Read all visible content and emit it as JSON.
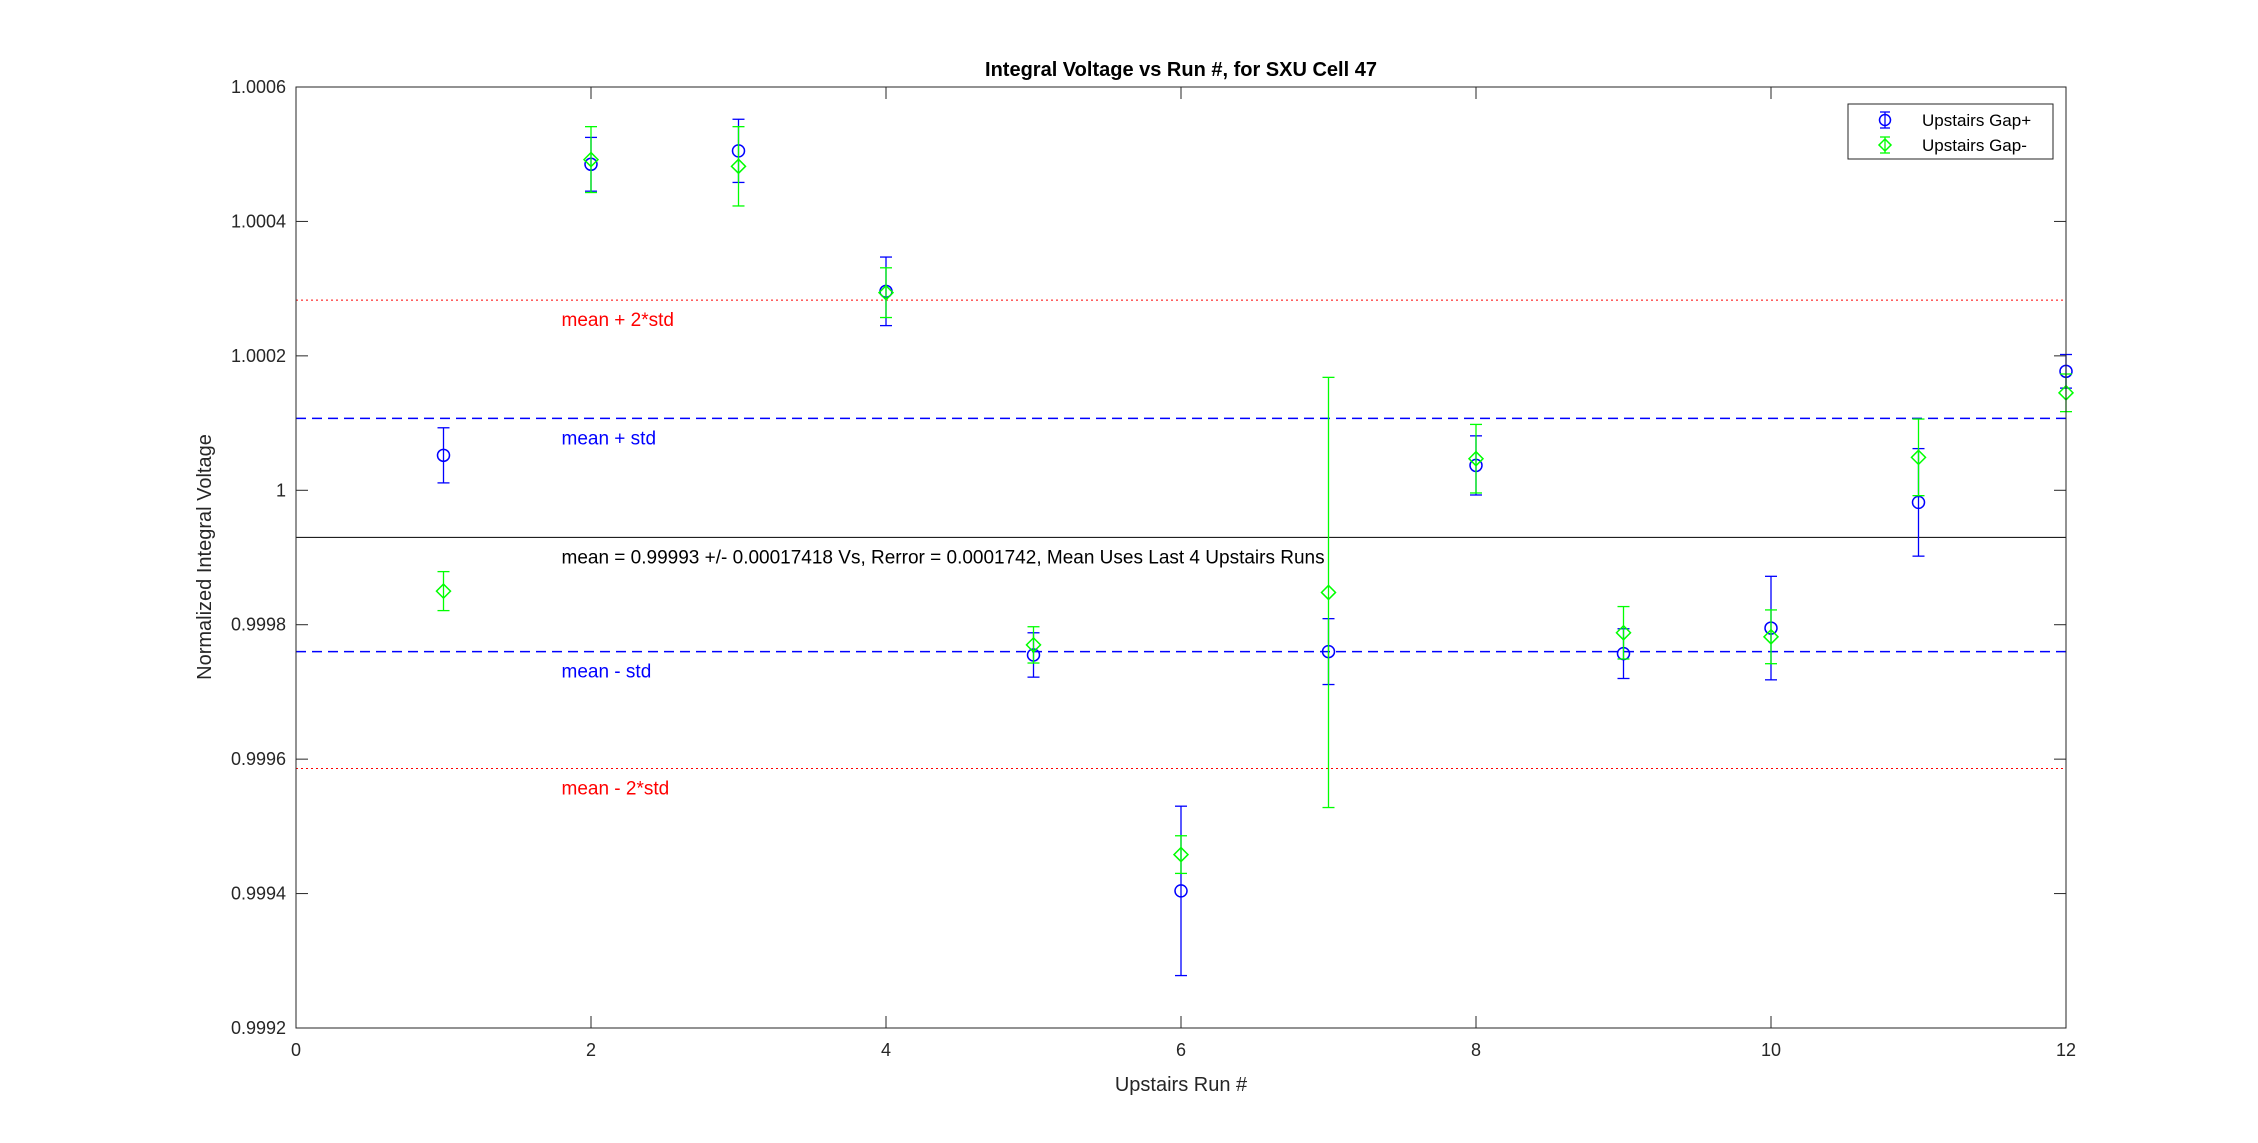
{
  "chart_data": {
    "type": "scatter",
    "title": "Integral Voltage vs Run #, for SXU Cell 47",
    "xlabel": "Upstairs Run #",
    "ylabel": "Normalized Integral Voltage",
    "xlim": [
      0,
      12
    ],
    "ylim": [
      0.9992,
      1.0006
    ],
    "x_ticks": [
      0,
      2,
      4,
      6,
      8,
      10,
      12
    ],
    "x_tick_labels": [
      "0",
      "2",
      "4",
      "6",
      "8",
      "10",
      "12"
    ],
    "y_ticks": [
      0.9992,
      0.9994,
      0.9996,
      0.9998,
      1.0,
      1.0002,
      1.0004,
      1.0006
    ],
    "y_tick_labels": [
      "0.9992",
      "0.9994",
      "0.9996",
      "0.9998",
      "1",
      "1.0002",
      "1.0004",
      "1.0006"
    ],
    "grid": false,
    "legend_position": "top-right",
    "series": [
      {
        "name": "Upstairs Gap+",
        "color": "#0000ff",
        "marker": "circle",
        "x": [
          1,
          2,
          3,
          4,
          5,
          6,
          7,
          8,
          9,
          10,
          11,
          12
        ],
        "y": [
          1.000052,
          1.000485,
          1.000505,
          1.000296,
          0.999755,
          0.999404,
          0.99976,
          1.000037,
          0.999757,
          0.999795,
          0.999982,
          1.000177
        ],
        "err": [
          4.1e-05,
          4e-05,
          4.7e-05,
          5.1e-05,
          3.3e-05,
          0.000126,
          4.9e-05,
          4.4e-05,
          3.7e-05,
          7.7e-05,
          8e-05,
          2.5e-05
        ]
      },
      {
        "name": "Upstairs Gap-",
        "color": "#00ff00",
        "marker": "diamond",
        "x": [
          1,
          2,
          3,
          4,
          5,
          6,
          7,
          8,
          9,
          10,
          11,
          12
        ],
        "y": [
          0.99985,
          1.000492,
          1.000482,
          1.000294,
          0.99977,
          0.999458,
          0.999848,
          1.000047,
          0.999788,
          0.999782,
          1.000049,
          1.000145
        ],
        "err": [
          2.9e-05,
          4.9e-05,
          5.9e-05,
          3.7e-05,
          2.7e-05,
          2.8e-05,
          0.00032,
          5.1e-05,
          3.9e-05,
          4e-05,
          5.7e-05,
          2.8e-05
        ]
      }
    ],
    "reference_lines": [
      {
        "y": 1.000283,
        "label": "mean + 2*std",
        "color": "#ff0000",
        "style": "dotted"
      },
      {
        "y": 1.000107,
        "label": "mean + std",
        "color": "#0000ff",
        "style": "dashed"
      },
      {
        "y": 0.99993,
        "label": "mean = 0.99993 +/- 0.00017418 Vs, Rerror = 0.0001742, Mean Uses Last 4 Upstairs Runs",
        "color": "#000000",
        "style": "solid"
      },
      {
        "y": 0.99976,
        "label": "mean - std",
        "color": "#0000ff",
        "style": "dashed"
      },
      {
        "y": 0.999586,
        "label": "mean - 2*std",
        "color": "#ff0000",
        "style": "dotted"
      }
    ]
  }
}
